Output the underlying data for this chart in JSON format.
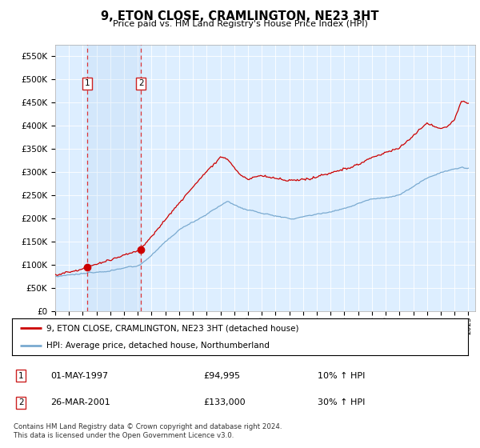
{
  "title": "9, ETON CLOSE, CRAMLINGTON, NE23 3HT",
  "subtitle": "Price paid vs. HM Land Registry's House Price Index (HPI)",
  "legend_line1": "9, ETON CLOSE, CRAMLINGTON, NE23 3HT (detached house)",
  "legend_line2": "HPI: Average price, detached house, Northumberland",
  "sale1_label": "1",
  "sale1_date": "01-MAY-1997",
  "sale1_price": "£94,995",
  "sale1_hpi": "10% ↑ HPI",
  "sale1_year": 1997.33,
  "sale1_value": 94995,
  "sale2_label": "2",
  "sale2_date": "26-MAR-2001",
  "sale2_price": "£133,000",
  "sale2_hpi": "30% ↑ HPI",
  "sale2_year": 2001.23,
  "sale2_value": 133000,
  "footer": "Contains HM Land Registry data © Crown copyright and database right 2024.\nThis data is licensed under the Open Government Licence v3.0.",
  "price_line_color": "#cc0000",
  "hpi_line_color": "#7aaad0",
  "background_color": "#ddeeff",
  "plot_bg_color": "#ffffff",
  "ylim": [
    0,
    575000
  ],
  "xlim_start": 1995.0,
  "xlim_end": 2025.5
}
